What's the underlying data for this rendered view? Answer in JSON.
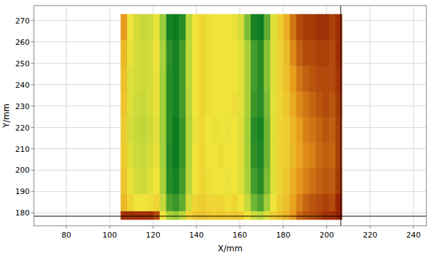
{
  "chart_data": {
    "type": "heatmap",
    "x_label": "X/mm",
    "y_label": "Y/mm",
    "xlim": [
      65,
      246
    ],
    "ylim": [
      174,
      277
    ],
    "xticks": [
      80,
      100,
      120,
      140,
      160,
      180,
      200,
      220,
      240
    ],
    "yticks": [
      180,
      190,
      200,
      210,
      220,
      230,
      240,
      250,
      260,
      270
    ],
    "grid": true,
    "x_edges": [
      105,
      108,
      111,
      114,
      117,
      120,
      123,
      126,
      129,
      132,
      135,
      138,
      141,
      144,
      147,
      150,
      153,
      156,
      159,
      162,
      165,
      168,
      171,
      174,
      177,
      180,
      183,
      186,
      189,
      192,
      195,
      198,
      201,
      204,
      207
    ],
    "y_edges": [
      177,
      181,
      189,
      201,
      213,
      225,
      237,
      249,
      261,
      273
    ],
    "zlim": [
      0,
      1
    ],
    "colors": [
      "#0c7c22",
      "#98cc3a",
      "#f0e43a",
      "#e89a1c",
      "#8e1600"
    ],
    "cells": [
      [
        0.95,
        0.95,
        0.95,
        0.95,
        0.95,
        0.9,
        0.5,
        0.3,
        0.25,
        0.35,
        0.55,
        0.6,
        0.62,
        0.6,
        0.58,
        0.6,
        0.58,
        0.6,
        0.58,
        0.5,
        0.4,
        0.35,
        0.45,
        0.58,
        0.62,
        0.68,
        0.75,
        0.85,
        0.88,
        0.9,
        0.92,
        0.95,
        0.95,
        0.98
      ],
      [
        0.65,
        0.55,
        0.5,
        0.5,
        0.52,
        0.55,
        0.38,
        0.12,
        0.08,
        0.15,
        0.42,
        0.55,
        0.58,
        0.55,
        0.55,
        0.55,
        0.52,
        0.55,
        0.5,
        0.38,
        0.18,
        0.12,
        0.28,
        0.5,
        0.58,
        0.62,
        0.72,
        0.8,
        0.85,
        0.88,
        0.9,
        0.92,
        0.9,
        0.97
      ],
      [
        0.6,
        0.48,
        0.42,
        0.4,
        0.45,
        0.5,
        0.3,
        0.05,
        0.02,
        0.1,
        0.35,
        0.5,
        0.55,
        0.52,
        0.5,
        0.5,
        0.48,
        0.5,
        0.45,
        0.3,
        0.1,
        0.05,
        0.2,
        0.45,
        0.55,
        0.6,
        0.68,
        0.76,
        0.8,
        0.83,
        0.86,
        0.88,
        0.87,
        0.93
      ],
      [
        0.58,
        0.45,
        0.4,
        0.38,
        0.42,
        0.48,
        0.28,
        0.04,
        0.0,
        0.08,
        0.33,
        0.5,
        0.55,
        0.5,
        0.5,
        0.52,
        0.5,
        0.5,
        0.45,
        0.28,
        0.06,
        0.03,
        0.18,
        0.45,
        0.55,
        0.58,
        0.65,
        0.72,
        0.78,
        0.8,
        0.84,
        0.86,
        0.85,
        0.92
      ],
      [
        0.58,
        0.42,
        0.38,
        0.36,
        0.4,
        0.46,
        0.28,
        0.05,
        0.0,
        0.08,
        0.33,
        0.48,
        0.54,
        0.5,
        0.48,
        0.5,
        0.48,
        0.5,
        0.45,
        0.28,
        0.05,
        0.02,
        0.18,
        0.45,
        0.55,
        0.58,
        0.66,
        0.74,
        0.8,
        0.82,
        0.85,
        0.88,
        0.86,
        0.92
      ],
      [
        0.6,
        0.45,
        0.4,
        0.38,
        0.42,
        0.48,
        0.28,
        0.05,
        0.02,
        0.1,
        0.35,
        0.5,
        0.55,
        0.52,
        0.5,
        0.5,
        0.5,
        0.52,
        0.46,
        0.3,
        0.08,
        0.05,
        0.2,
        0.46,
        0.55,
        0.6,
        0.7,
        0.78,
        0.82,
        0.85,
        0.88,
        0.9,
        0.88,
        0.93
      ],
      [
        0.62,
        0.45,
        0.42,
        0.4,
        0.42,
        0.48,
        0.28,
        0.05,
        0.02,
        0.1,
        0.36,
        0.5,
        0.55,
        0.52,
        0.5,
        0.5,
        0.5,
        0.5,
        0.46,
        0.3,
        0.1,
        0.05,
        0.22,
        0.46,
        0.56,
        0.62,
        0.74,
        0.82,
        0.86,
        0.88,
        0.9,
        0.9,
        0.9,
        0.94
      ],
      [
        0.65,
        0.48,
        0.42,
        0.4,
        0.42,
        0.5,
        0.3,
        0.06,
        0.02,
        0.1,
        0.36,
        0.5,
        0.55,
        0.52,
        0.5,
        0.5,
        0.5,
        0.5,
        0.46,
        0.3,
        0.1,
        0.05,
        0.22,
        0.46,
        0.56,
        0.64,
        0.78,
        0.86,
        0.9,
        0.9,
        0.92,
        0.92,
        0.9,
        0.95
      ],
      [
        0.75,
        0.5,
        0.42,
        0.38,
        0.4,
        0.48,
        0.25,
        0.02,
        0.0,
        0.05,
        0.35,
        0.5,
        0.55,
        0.52,
        0.5,
        0.5,
        0.5,
        0.48,
        0.42,
        0.2,
        0.02,
        0.0,
        0.15,
        0.45,
        0.58,
        0.68,
        0.82,
        0.9,
        0.93,
        0.93,
        0.95,
        0.95,
        0.92,
        0.95
      ]
    ],
    "cursor_x": 206.5,
    "cursor_y": 178.5
  }
}
